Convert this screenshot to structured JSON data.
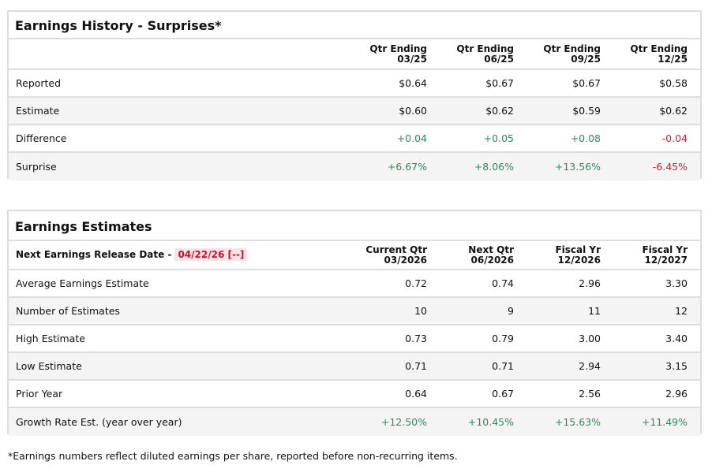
{
  "history": {
    "title": "Earnings History - Surprises*",
    "columns": [
      [
        "Qtr Ending",
        "03/25"
      ],
      [
        "Qtr Ending",
        "06/25"
      ],
      [
        "Qtr Ending",
        "09/25"
      ],
      [
        "Qtr Ending",
        "12/25"
      ]
    ],
    "rows": [
      {
        "label": "Reported",
        "values": [
          "$0.64",
          "$0.67",
          "$0.67",
          "$0.58"
        ],
        "tones": [
          "",
          "",
          "",
          ""
        ]
      },
      {
        "label": "Estimate",
        "values": [
          "$0.60",
          "$0.62",
          "$0.59",
          "$0.62"
        ],
        "tones": [
          "",
          "",
          "",
          ""
        ]
      },
      {
        "label": "Difference",
        "values": [
          "+0.04",
          "+0.05",
          "+0.08",
          "-0.04"
        ],
        "tones": [
          "pos",
          "pos",
          "pos",
          "neg"
        ]
      },
      {
        "label": "Surprise",
        "values": [
          "+6.67%",
          "+8.06%",
          "+13.56%",
          "-6.45%"
        ],
        "tones": [
          "pos",
          "pos",
          "pos",
          "neg"
        ]
      }
    ]
  },
  "estimates": {
    "title": "Earnings Estimates",
    "release_label": "Next Earnings Release Date -",
    "release_date": "04/22/26 [--]",
    "columns": [
      [
        "Current Qtr",
        "03/2026"
      ],
      [
        "Next Qtr",
        "06/2026"
      ],
      [
        "Fiscal Yr",
        "12/2026"
      ],
      [
        "Fiscal Yr",
        "12/2027"
      ]
    ],
    "rows": [
      {
        "label": "Average Earnings Estimate",
        "values": [
          "0.72",
          "0.74",
          "2.96",
          "3.30"
        ],
        "tones": [
          "",
          "",
          "",
          ""
        ]
      },
      {
        "label": "Number of Estimates",
        "values": [
          "10",
          "9",
          "11",
          "12"
        ],
        "tones": [
          "",
          "",
          "",
          ""
        ]
      },
      {
        "label": "High Estimate",
        "values": [
          "0.73",
          "0.79",
          "3.00",
          "3.40"
        ],
        "tones": [
          "",
          "",
          "",
          ""
        ]
      },
      {
        "label": "Low Estimate",
        "values": [
          "0.71",
          "0.71",
          "2.94",
          "3.15"
        ],
        "tones": [
          "",
          "",
          "",
          ""
        ]
      },
      {
        "label": "Prior Year",
        "values": [
          "0.64",
          "0.67",
          "2.56",
          "2.96"
        ],
        "tones": [
          "",
          "",
          "",
          ""
        ]
      },
      {
        "label": "Growth Rate Est. (year over year)",
        "values": [
          "+12.50%",
          "+10.45%",
          "+15.63%",
          "+11.49%"
        ],
        "tones": [
          "pos",
          "pos",
          "pos",
          "pos"
        ]
      }
    ]
  },
  "footnote": "*Earnings numbers reflect diluted earnings per share, reported before non-recurring items."
}
